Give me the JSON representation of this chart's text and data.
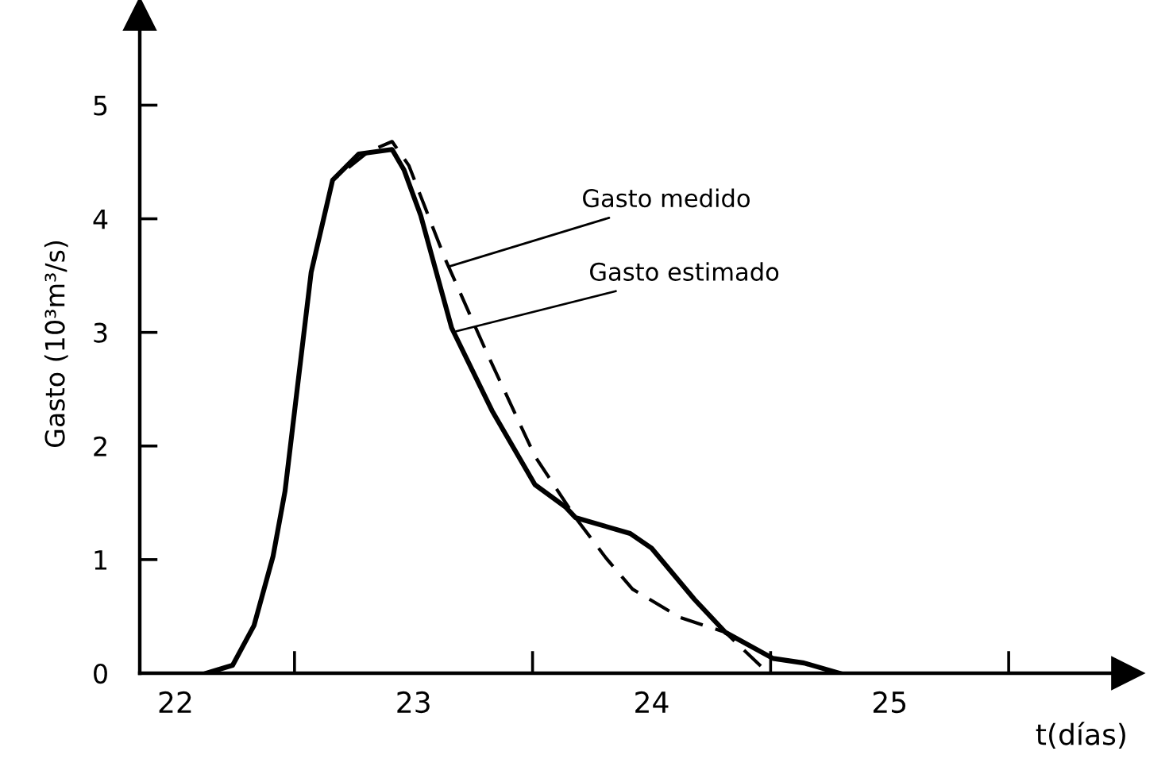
{
  "chart_data": {
    "type": "line",
    "xlabel": "t(días)",
    "ylabel": "Gasto (10³m³/s)",
    "xlim": [
      21.85,
      26.0
    ],
    "ylim": [
      0,
      5.8
    ],
    "xticks": [
      {
        "value": 22,
        "label": "22"
      },
      {
        "value": 22.5,
        "label": null
      },
      {
        "value": 23,
        "label": "23"
      },
      {
        "value": 23.5,
        "label": null
      },
      {
        "value": 24,
        "label": "24"
      },
      {
        "value": 24.5,
        "label": null
      },
      {
        "value": 25,
        "label": "25"
      },
      {
        "value": 25.5,
        "label": null
      }
    ],
    "yticks": [
      0,
      1,
      2,
      3,
      4,
      5
    ],
    "grid": false,
    "marker": "none",
    "series": [
      {
        "color": "#000000",
        "line_style": "solid",
        "x": [
          22.13,
          22.24,
          22.33,
          22.41,
          22.46,
          22.57,
          22.66,
          22.77,
          22.91,
          22.96,
          23.03,
          23.16,
          23.33,
          23.51,
          23.64,
          23.68,
          23.91,
          24.0,
          24.18,
          24.31,
          24.51,
          24.64,
          24.79
        ],
        "values": [
          0,
          0.07,
          0.42,
          1.03,
          1.6,
          3.53,
          4.34,
          4.57,
          4.61,
          4.43,
          4.03,
          3.04,
          2.31,
          1.66,
          1.46,
          1.37,
          1.23,
          1.1,
          0.65,
          0.36,
          0.13,
          0.09,
          0
        ]
      },
      {
        "color": "#000000",
        "line_style": "dashed",
        "x": [
          22.13,
          22.24,
          22.33,
          22.41,
          22.46,
          22.57,
          22.66,
          22.81,
          22.91,
          22.98,
          23.13,
          23.31,
          23.51,
          23.68,
          23.81,
          23.92,
          24.12,
          24.31,
          24.49
        ],
        "values": [
          0,
          0.07,
          0.42,
          1.03,
          1.6,
          3.53,
          4.34,
          4.59,
          4.68,
          4.47,
          3.66,
          2.81,
          1.91,
          1.37,
          1.01,
          0.74,
          0.49,
          0.36,
          0
        ]
      }
    ],
    "annotations": [
      {
        "text": "Gasto medido",
        "x": 23.15,
        "y": 3.58
      },
      {
        "text": "Gasto estimado",
        "x": 23.18,
        "y": 3.01
      }
    ]
  }
}
